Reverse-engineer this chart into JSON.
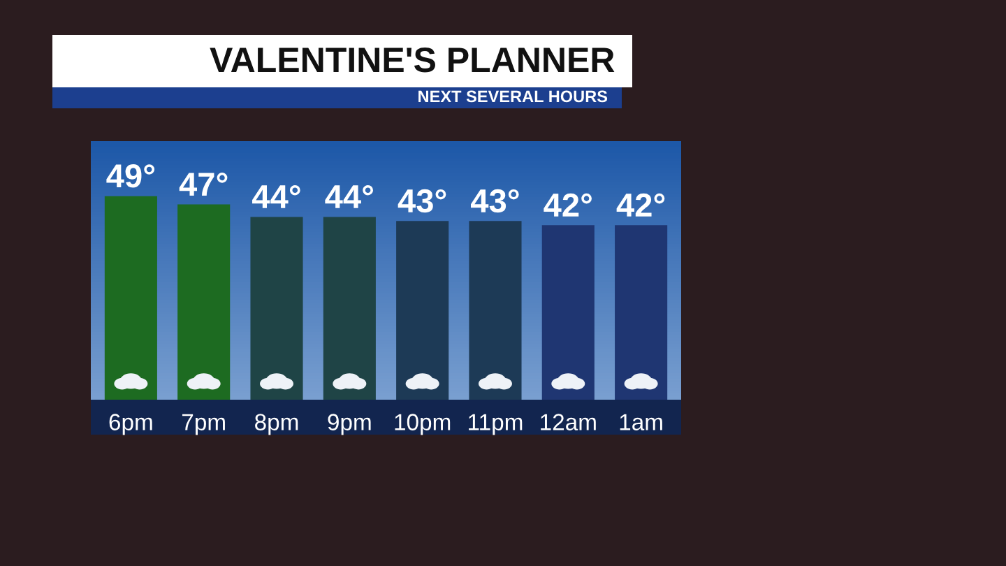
{
  "chart_data": {
    "type": "bar",
    "title": "VALENTINE'S PLANNER",
    "subtitle": "NEXT SEVERAL HOURS",
    "categories": [
      "6pm",
      "7pm",
      "8pm",
      "9pm",
      "10pm",
      "11pm",
      "12am",
      "1am"
    ],
    "values": [
      49,
      47,
      44,
      44,
      43,
      43,
      42,
      42
    ],
    "colors": [
      "#1d6b21",
      "#1d6b21",
      "#1f4446",
      "#1f4446",
      "#1d3a56",
      "#1d3a56",
      "#1f3672",
      "#1f3672"
    ],
    "value_labels": [
      "49°",
      "47°",
      "44°",
      "44°",
      "43°",
      "43°",
      "42°",
      "42°"
    ],
    "grid": false,
    "legend": false
  }
}
